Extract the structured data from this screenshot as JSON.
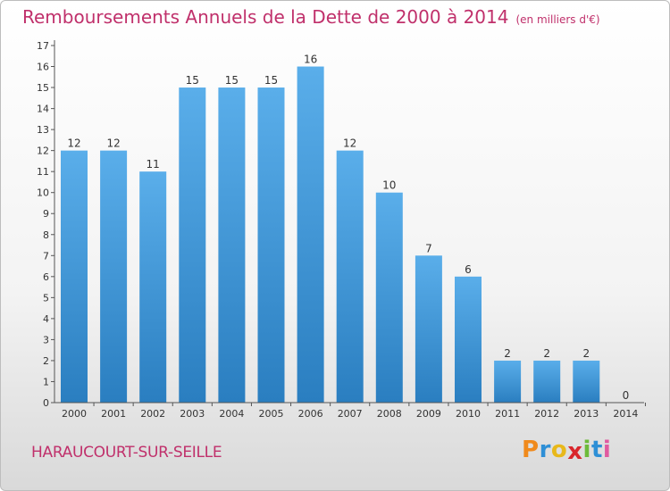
{
  "chart_data": {
    "type": "bar",
    "title": "Remboursements Annuels de la Dette de 2000 à 2014",
    "subtitle": "(en milliers d'€)",
    "xlabel": "",
    "ylabel": "",
    "categories": [
      "2000",
      "2001",
      "2002",
      "2003",
      "2004",
      "2005",
      "2006",
      "2007",
      "2008",
      "2009",
      "2010",
      "2011",
      "2012",
      "2013",
      "2014"
    ],
    "values": [
      12,
      12,
      11,
      15,
      15,
      15,
      16,
      12,
      10,
      7,
      6,
      2,
      2,
      2,
      0
    ],
    "data_labels": [
      "12",
      "12",
      "11",
      "15",
      "15",
      "15",
      "16",
      "12",
      "10",
      "7",
      "6",
      "2",
      "2",
      "2",
      "0"
    ],
    "ylim": [
      0,
      17
    ],
    "yticks": [
      "0",
      "1",
      "2",
      "3",
      "4",
      "5",
      "6",
      "7",
      "8",
      "9",
      "10",
      "11",
      "12",
      "13",
      "14",
      "15",
      "16",
      "17"
    ],
    "grid": false,
    "bar_color_top": "#5aaeea",
    "bar_color_bottom": "#2a7ec0"
  },
  "footer": {
    "commune": "HARAUCOURT-SUR-SEILLE",
    "logo_letters": [
      "P",
      "r",
      "o",
      "x",
      "i",
      "t",
      "i"
    ],
    "logo_colors": [
      "#f08a1c",
      "#2e8fd6",
      "#e8b81a",
      "#d9262c",
      "#6dbb3a",
      "#2e8fd6",
      "#e05aa0"
    ]
  },
  "colors": {
    "title": "#c0306b",
    "axis": "#555555"
  }
}
